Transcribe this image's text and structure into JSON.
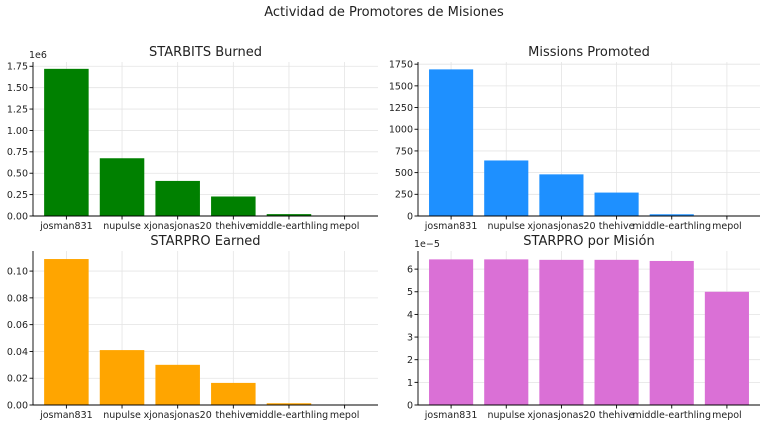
{
  "figure": {
    "title": "Actividad de Promotores de Misiones"
  },
  "chart_data": [
    {
      "type": "bar",
      "title": "STARBITS Burned",
      "categories": [
        "josman831",
        "nupulse",
        "xjonasjonas20",
        "thehive",
        "middle-earthling",
        "mepol"
      ],
      "values": [
        1720000,
        675000,
        410000,
        228000,
        22000,
        3000
      ],
      "ylim": [
        0,
        1800000
      ],
      "yticks": [
        0,
        250000,
        500000,
        750000,
        1000000,
        1250000,
        1500000,
        1750000
      ],
      "ytick_labels": [
        "0.00",
        "0.25",
        "0.50",
        "0.75",
        "1.00",
        "1.25",
        "1.50",
        "1.75"
      ],
      "offset_label": "1e6",
      "color": "#008000",
      "xlabel": "",
      "ylabel": "",
      "grid": true
    },
    {
      "type": "bar",
      "title": "Missions Promoted",
      "categories": [
        "josman831",
        "nupulse",
        "xjonasjonas20",
        "thehive",
        "middle-earthling",
        "mepol"
      ],
      "values": [
        1690,
        640,
        480,
        270,
        20,
        2
      ],
      "ylim": [
        0,
        1775
      ],
      "yticks": [
        0,
        250,
        500,
        750,
        1000,
        1250,
        1500,
        1750
      ],
      "ytick_labels": [
        "0",
        "250",
        "500",
        "750",
        "1000",
        "1250",
        "1500",
        "1750"
      ],
      "offset_label": "",
      "color": "#1e90ff",
      "xlabel": "",
      "ylabel": "",
      "grid": true
    },
    {
      "type": "bar",
      "title": "STARPRO Earned",
      "categories": [
        "josman831",
        "nupulse",
        "xjonasjonas20",
        "thehive",
        "middle-earthling",
        "mepol"
      ],
      "values": [
        0.109,
        0.041,
        0.03,
        0.0165,
        0.0013,
        0.0001
      ],
      "ylim": [
        0,
        0.115
      ],
      "yticks": [
        0,
        0.02,
        0.04,
        0.06,
        0.08,
        0.1
      ],
      "ytick_labels": [
        "0.00",
        "0.02",
        "0.04",
        "0.06",
        "0.08",
        "0.10"
      ],
      "offset_label": "",
      "color": "#ffa500",
      "xlabel": "",
      "ylabel": "",
      "grid": true
    },
    {
      "type": "bar",
      "title": "STARPRO por Misión",
      "categories": [
        "josman831",
        "nupulse",
        "xjonasjonas20",
        "thehive",
        "middle-earthling",
        "mepol"
      ],
      "values": [
        6.43e-05,
        6.43e-05,
        6.41e-05,
        6.41e-05,
        6.36e-05,
        5e-05
      ],
      "ylim": [
        0,
        6.8e-05
      ],
      "yticks": [
        0,
        1e-05,
        2e-05,
        3e-05,
        4e-05,
        5e-05,
        6e-05
      ],
      "ytick_labels": [
        "0",
        "1",
        "2",
        "3",
        "4",
        "5",
        "6"
      ],
      "offset_label": "1e−5",
      "color": "#da70d6",
      "xlabel": "",
      "ylabel": "",
      "grid": true
    }
  ]
}
